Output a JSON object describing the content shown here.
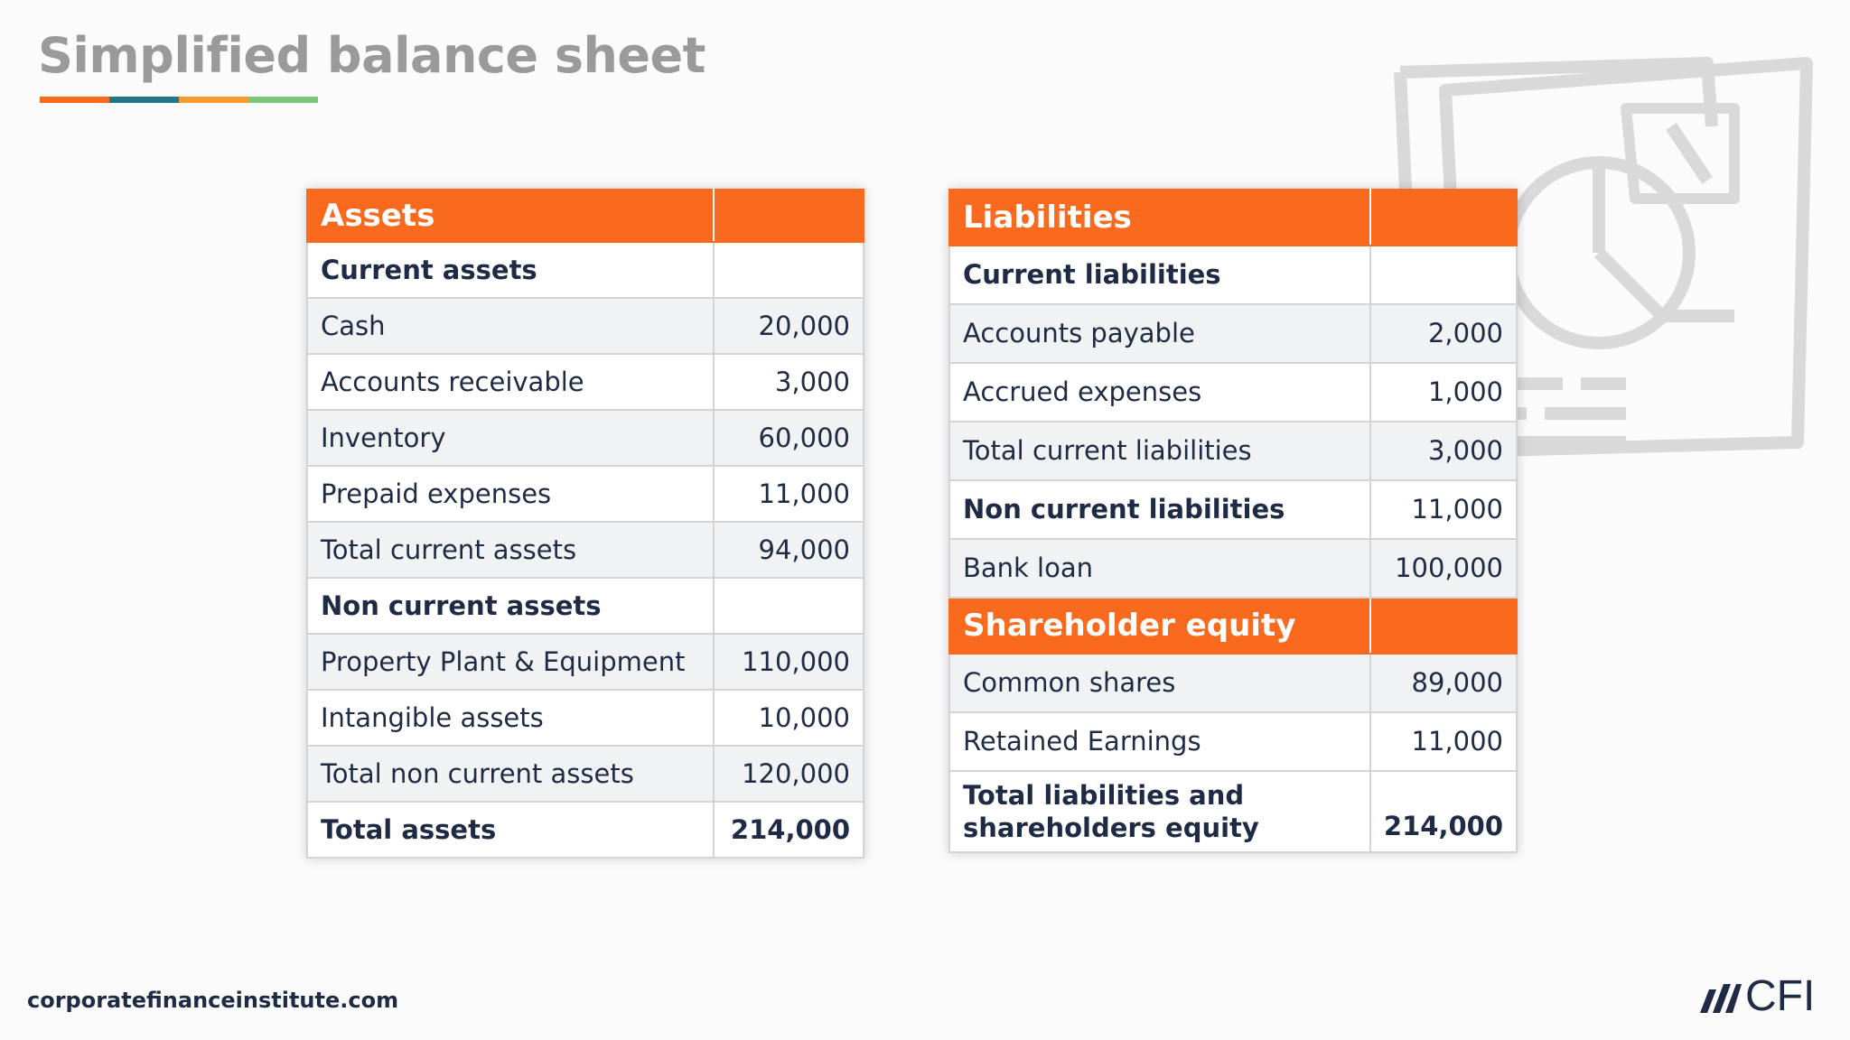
{
  "title": "Simplified balance sheet",
  "colors": {
    "accent_orange": "#f96a1f",
    "accent_teal": "#23768c",
    "accent_amber": "#f39b2c",
    "accent_green": "#7cc57b",
    "navy": "#1f2b45"
  },
  "assets": {
    "header": "Assets",
    "rows": [
      {
        "label": "Current assets",
        "value": ""
      },
      {
        "label": "Cash",
        "value": "20,000"
      },
      {
        "label": "Accounts receivable",
        "value": "3,000"
      },
      {
        "label": "Inventory",
        "value": "60,000"
      },
      {
        "label": "Prepaid expenses",
        "value": "11,000"
      },
      {
        "label": "Total current assets",
        "value": "94,000"
      },
      {
        "label": "Non current assets",
        "value": ""
      },
      {
        "label": "Property Plant & Equipment",
        "value": "110,000"
      },
      {
        "label": "Intangible assets",
        "value": "10,000"
      },
      {
        "label": "Total non current assets",
        "value": "120,000"
      },
      {
        "label": "Total assets",
        "value": "214,000"
      }
    ]
  },
  "liabilities": {
    "header": "Liabilities",
    "rows": [
      {
        "label": "Current liabilities",
        "value": ""
      },
      {
        "label": "Accounts payable",
        "value": "2,000"
      },
      {
        "label": "Accrued expenses",
        "value": "1,000"
      },
      {
        "label": "Total current liabilities",
        "value": "3,000"
      },
      {
        "label": "Non current liabilities",
        "value": "11,000"
      },
      {
        "label": "Bank loan",
        "value": "100,000"
      }
    ],
    "equity_header": "Shareholder equity",
    "equity_rows": [
      {
        "label": "Common shares",
        "value": "89,000"
      },
      {
        "label": "Retained Earnings",
        "value": "11,000"
      }
    ],
    "total": {
      "label_line1": "Total liabilities and",
      "label_line2": "shareholders equity",
      "value": "214,000"
    }
  },
  "footer": {
    "url": "corporatefinanceinstitute.com",
    "logo_text": "CFI",
    "logo_icon": "cfi-slashes-icon"
  },
  "background_icon": "chart-document-icon"
}
